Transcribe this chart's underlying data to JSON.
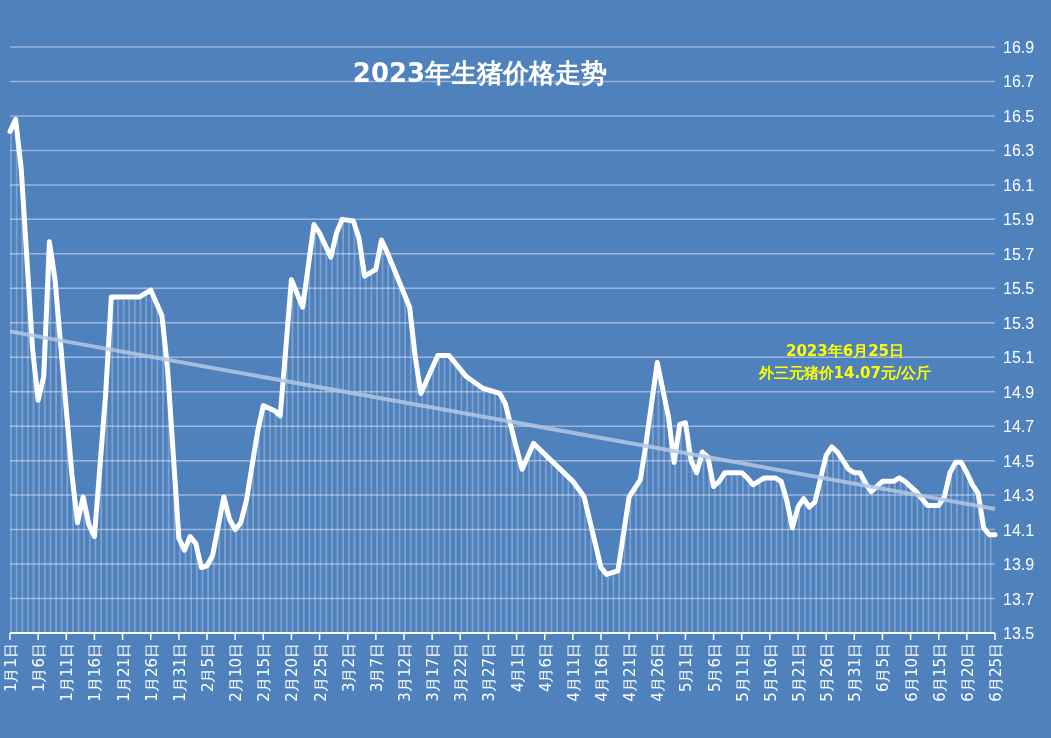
{
  "chart_data": {
    "type": "line",
    "title": "2023年生猪价格走势",
    "annotations": [
      "2023年6月25日",
      "外三元猪价14.07元/公斤"
    ],
    "series": [
      {
        "type": "area",
        "color": "#ffffff",
        "x": [
          "2023-01-01",
          "2023-01-02",
          "2023-01-03",
          "2023-01-05",
          "2023-01-06",
          "2023-01-07",
          "2023-01-08",
          "2023-01-09",
          "2023-01-12",
          "2023-01-13",
          "2023-01-14",
          "2023-01-15",
          "2023-01-16",
          "2023-01-18",
          "2023-01-19",
          "2023-01-24",
          "2023-01-26",
          "2023-01-28",
          "2023-01-29",
          "2023-01-31",
          "2023-02-01",
          "2023-02-02",
          "2023-02-03",
          "2023-02-04",
          "2023-02-05",
          "2023-02-06",
          "2023-02-08",
          "2023-02-09",
          "2023-02-10",
          "2023-02-11",
          "2023-02-12",
          "2023-02-14",
          "2023-02-15",
          "2023-02-17",
          "2023-02-18",
          "2023-02-19",
          "2023-02-20",
          "2023-02-22",
          "2023-02-24",
          "2023-02-25",
          "2023-02-27",
          "2023-02-28",
          "2023-03-01",
          "2023-03-03",
          "2023-03-04",
          "2023-03-05",
          "2023-03-07",
          "2023-03-08",
          "2023-03-09",
          "2023-03-12",
          "2023-03-13",
          "2023-03-14",
          "2023-03-15",
          "2023-03-18",
          "2023-03-20",
          "2023-03-23",
          "2023-03-26",
          "2023-03-29",
          "2023-03-30",
          "2023-04-01",
          "2023-04-02",
          "2023-04-04",
          "2023-04-11",
          "2023-04-13",
          "2023-04-16",
          "2023-04-17",
          "2023-04-19",
          "2023-04-21",
          "2023-04-23",
          "2023-04-24",
          "2023-04-26",
          "2023-04-28",
          "2023-04-29",
          "2023-04-30",
          "2023-05-01",
          "2023-05-02",
          "2023-05-03",
          "2023-05-04",
          "2023-05-05",
          "2023-05-06",
          "2023-05-07",
          "2023-05-08",
          "2023-05-10",
          "2023-05-11",
          "2023-05-12",
          "2023-05-13",
          "2023-05-15",
          "2023-05-17",
          "2023-05-18",
          "2023-05-19",
          "2023-05-20",
          "2023-05-21",
          "2023-05-22",
          "2023-05-23",
          "2023-05-24",
          "2023-05-26",
          "2023-05-27",
          "2023-05-28",
          "2023-05-30",
          "2023-05-31",
          "2023-06-01",
          "2023-06-02",
          "2023-06-03",
          "2023-06-05",
          "2023-06-07",
          "2023-06-08",
          "2023-06-09",
          "2023-06-11",
          "2023-06-12",
          "2023-06-13",
          "2023-06-15",
          "2023-06-16",
          "2023-06-17",
          "2023-06-18",
          "2023-06-19",
          "2023-06-20",
          "2023-06-21",
          "2023-06-22",
          "2023-06-23",
          "2023-06-24",
          "2023-06-25"
        ],
        "values": [
          16.41,
          16.48,
          16.19,
          15.15,
          14.85,
          14.99,
          15.77,
          15.55,
          14.42,
          14.14,
          14.29,
          14.13,
          14.06,
          14.89,
          15.45,
          15.45,
          15.49,
          15.34,
          15.03,
          14.05,
          13.98,
          14.06,
          14.02,
          13.88,
          13.89,
          13.95,
          14.29,
          14.16,
          14.1,
          14.14,
          14.27,
          14.67,
          14.82,
          14.79,
          14.76,
          15.15,
          15.55,
          15.39,
          15.87,
          15.82,
          15.68,
          15.82,
          15.9,
          15.89,
          15.79,
          15.57,
          15.61,
          15.78,
          15.71,
          15.47,
          15.39,
          15.1,
          14.89,
          15.11,
          15.11,
          14.99,
          14.92,
          14.89,
          14.83,
          14.57,
          14.45,
          14.6,
          14.38,
          14.29,
          13.88,
          13.84,
          13.86,
          14.29,
          14.39,
          14.6,
          15.07,
          14.75,
          14.49,
          14.71,
          14.72,
          14.5,
          14.43,
          14.55,
          14.52,
          14.35,
          14.38,
          14.43,
          14.43,
          14.43,
          14.4,
          14.36,
          14.4,
          14.4,
          14.38,
          14.27,
          14.11,
          14.23,
          14.28,
          14.23,
          14.26,
          14.53,
          14.58,
          14.55,
          14.45,
          14.43,
          14.43,
          14.37,
          14.32,
          14.38,
          14.38,
          14.4,
          14.38,
          14.32,
          14.28,
          14.24,
          14.24,
          14.29,
          14.43,
          14.49,
          14.49,
          14.43,
          14.36,
          14.31,
          14.11,
          14.07,
          14.07
        ]
      },
      {
        "color": "#b4c7e2",
        "x": [
          "2023-01-01",
          "2023-06-25"
        ],
        "values": [
          15.25,
          14.22
        ]
      }
    ],
    "xlim": [
      "2023-01-01",
      "2023-06-25"
    ],
    "xticks": [
      {
        "value": "2023-01-01",
        "label": "1月1日"
      },
      {
        "value": "2023-01-06",
        "label": "1月6日"
      },
      {
        "value": "2023-01-11",
        "label": "1月11日"
      },
      {
        "value": "2023-01-16",
        "label": "1月16日"
      },
      {
        "value": "2023-01-21",
        "label": "1月21日"
      },
      {
        "value": "2023-01-26",
        "label": "1月26日"
      },
      {
        "value": "2023-01-31",
        "label": "1月31日"
      },
      {
        "value": "2023-02-05",
        "label": "2月5日"
      },
      {
        "value": "2023-02-10",
        "label": "2月10日"
      },
      {
        "value": "2023-02-15",
        "label": "2月15日"
      },
      {
        "value": "2023-02-20",
        "label": "2月20日"
      },
      {
        "value": "2023-02-25",
        "label": "2月25日"
      },
      {
        "value": "2023-03-02",
        "label": "3月2日"
      },
      {
        "value": "2023-03-07",
        "label": "3月7日"
      },
      {
        "value": "2023-03-12",
        "label": "3月12日"
      },
      {
        "value": "2023-03-17",
        "label": "3月17日"
      },
      {
        "value": "2023-03-22",
        "label": "3月22日"
      },
      {
        "value": "2023-03-27",
        "label": "3月27日"
      },
      {
        "value": "2023-04-01",
        "label": "4月1日"
      },
      {
        "value": "2023-04-06",
        "label": "4月6日"
      },
      {
        "value": "2023-04-11",
        "label": "4月11日"
      },
      {
        "value": "2023-04-16",
        "label": "4月16日"
      },
      {
        "value": "2023-04-21",
        "label": "4月21日"
      },
      {
        "value": "2023-04-26",
        "label": "4月26日"
      },
      {
        "value": "2023-05-01",
        "label": "5月1日"
      },
      {
        "value": "2023-05-06",
        "label": "5月6日"
      },
      {
        "value": "2023-05-11",
        "label": "5月11日"
      },
      {
        "value": "2023-05-16",
        "label": "5月16日"
      },
      {
        "value": "2023-05-21",
        "label": "5月21日"
      },
      {
        "value": "2023-05-26",
        "label": "5月26日"
      },
      {
        "value": "2023-05-31",
        "label": "5月31日"
      },
      {
        "value": "2023-06-05",
        "label": "6月5日"
      },
      {
        "value": "2023-06-10",
        "label": "6月10日"
      },
      {
        "value": "2023-06-15",
        "label": "6月15日"
      },
      {
        "value": "2023-06-20",
        "label": "6月20日"
      },
      {
        "value": "2023-06-25",
        "label": "6月25日"
      }
    ],
    "ylim": [
      13.5,
      16.9
    ],
    "yticks": [
      13.5,
      13.7,
      13.9,
      14.1,
      14.3,
      14.5,
      14.7,
      14.9,
      15.1,
      15.3,
      15.5,
      15.7,
      15.9,
      16.1,
      16.3,
      16.5,
      16.7,
      16.9
    ],
    "grid": "y"
  }
}
